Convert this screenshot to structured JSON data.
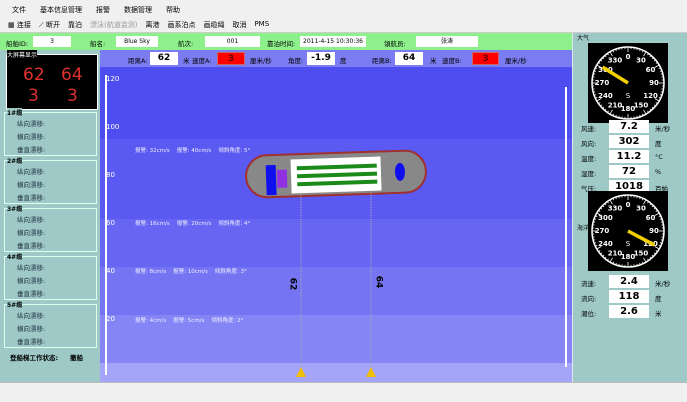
{
  "menu": [
    "文件",
    "基本信息管理",
    "报警",
    "数据管理",
    "帮助"
  ],
  "toolbar": {
    "connect": "连接",
    "disconnect": "断开",
    "berth": "靠泊",
    "drift": "漂泳(航道监测)",
    "leave": "离港",
    "draw_point": "画系泊点",
    "draw_line": "画缆绳",
    "cancel": "取消",
    "pms": "PMS"
  },
  "info": {
    "ship_id_label": "船舶ID:",
    "ship_id": "3",
    "ship_name_label": "船名:",
    "ship_name": "Blue Sky",
    "voyage_label": "航次:",
    "voyage": "001",
    "berth_time_label": "靠泊时间:",
    "berth_time": "2011-4-15 10:30:36",
    "pilot_label": "領航员:",
    "pilot": "张涛"
  },
  "bluebar": {
    "dist_a_label": "距离A:",
    "dist_a": "62",
    "unit_m": "米",
    "speed_a_label": "速度A:",
    "speed_a": "3",
    "unit_speed": "厘米/秒",
    "angle_label": "角度:",
    "angle": "-1.9",
    "unit_deg": "度",
    "dist_b_label": "距离B:",
    "dist_b": "64",
    "speed_b_label": "速度B:",
    "speed_b": "3"
  },
  "bigscreen": {
    "title": "大屏幕显示",
    "a": "62",
    "b": "64",
    "sa": "3",
    "sb": "3"
  },
  "groups": [
    {
      "title": "1#缆"
    },
    {
      "title": "2#缆"
    },
    {
      "title": "3#缆"
    },
    {
      "title": "4#缆"
    },
    {
      "title": "5#缆"
    }
  ],
  "group_rows": [
    "纵向漂移:",
    "横向漂移:",
    "垂直漂移:"
  ],
  "work_status": {
    "label": "登船梯工作状态:",
    "value": "撤船"
  },
  "canvas": {
    "ticks": [
      "120",
      "100",
      "80",
      "60",
      "40",
      "20"
    ],
    "alarms": [
      {
        "a": "报警: 32cm/s",
        "b": "报警: 40cm/s",
        "c": "倾斜角度: 5°"
      },
      {
        "a": "报警: 16cm/s",
        "b": "报警: 20cm/s",
        "c": "倾斜角度: 4°"
      },
      {
        "a": "报警: 8cm/s",
        "b": "报警: 10cm/s",
        "c": "倾斜角度: 3°"
      },
      {
        "a": "报警: 4cm/s",
        "b": "报警: 5cm/s",
        "c": "倾斜角度: 2°"
      }
    ],
    "line_a": "62",
    "line_b": "64"
  },
  "weather": {
    "title": "大气",
    "rows": [
      {
        "label": "风速:",
        "value": "7.2",
        "unit": "米/秒"
      },
      {
        "label": "风向:",
        "value": "302",
        "unit": "度"
      },
      {
        "label": "温度:",
        "value": "11.2",
        "unit": "°C"
      },
      {
        "label": "湿度:",
        "value": "72",
        "unit": "%"
      },
      {
        "label": "气压:",
        "value": "1018",
        "unit": "百帕"
      }
    ],
    "dial_direction": 302
  },
  "ocean": {
    "title": "海洋",
    "rows": [
      {
        "label": "流速:",
        "value": "2.4",
        "unit": "米/秒"
      },
      {
        "label": "流向:",
        "value": "118",
        "unit": "度"
      },
      {
        "label": "潮位:",
        "value": "2.6",
        "unit": "米"
      }
    ],
    "dial_direction": 118
  },
  "dial_labels": [
    "0",
    "30",
    "60",
    "90",
    "120",
    "150",
    "180",
    "210",
    "240",
    "270",
    "300",
    "330"
  ],
  "dial_center": "S"
}
